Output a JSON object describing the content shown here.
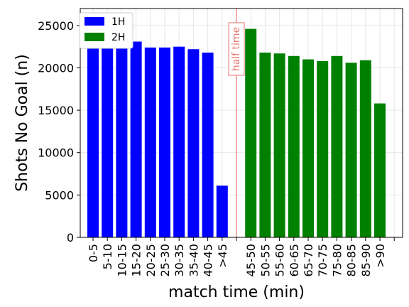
{
  "chart_data": {
    "type": "bar",
    "xlabel": "match time (min)",
    "ylabel": "Shots No Goal (n)",
    "ylim": [
      0,
      27000
    ],
    "yticks": [
      0,
      5000,
      10000,
      15000,
      20000,
      25000
    ],
    "grid": true,
    "legend_position": "top-left",
    "series": [
      {
        "name": "1H",
        "color": "#0000ff",
        "categories": [
          "0-5",
          "5-10",
          "10-15",
          "15-20",
          "20-25",
          "25-30",
          "30-35",
          "35-40",
          "40-45",
          ">45"
        ],
        "values": [
          22500,
          22800,
          23000,
          23100,
          22400,
          22400,
          22500,
          22200,
          21800,
          6100
        ]
      },
      {
        "name": "2H",
        "color": "#008000",
        "categories": [
          "45-50",
          "50-55",
          "55-60",
          "60-65",
          "65-70",
          "70-75",
          "75-80",
          "80-85",
          "85-90",
          ">90"
        ],
        "values": [
          24600,
          21800,
          21700,
          21400,
          21000,
          20800,
          21400,
          20600,
          20900,
          15800
        ]
      }
    ],
    "annotation": {
      "text": "half time",
      "color": "#e8736e"
    }
  }
}
